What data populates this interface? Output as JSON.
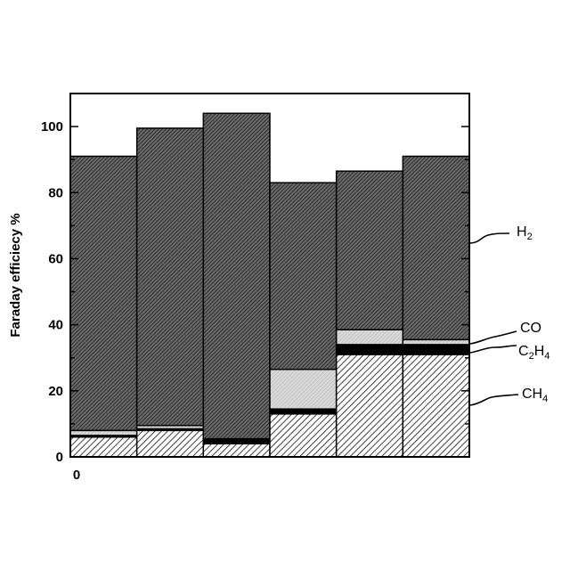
{
  "chart_data": {
    "type": "bar",
    "stacked": true,
    "xlabel": "",
    "ylabel": "Faraday efficiecy %",
    "ylim": [
      0,
      110
    ],
    "yticks": [
      0,
      20,
      40,
      60,
      80,
      100
    ],
    "x_tick_labels": [
      "0"
    ],
    "categories": [
      "",
      "",
      "",
      "",
      "",
      ""
    ],
    "series": [
      {
        "name": "CH4",
        "label_main": "CH",
        "label_sub": "4",
        "pattern": "ch4",
        "values": [
          6,
          8,
          4,
          13,
          31,
          31
        ]
      },
      {
        "name": "C2H4",
        "label_main": "C",
        "label_sub1": "2",
        "label_mid": "H",
        "label_sub2": "4",
        "pattern": "c2h4",
        "values": [
          0.5,
          0.5,
          1.5,
          1.5,
          3,
          3
        ]
      },
      {
        "name": "CO",
        "label_main": "CO",
        "pattern": "co",
        "values": [
          1.5,
          1,
          0,
          12,
          4.5,
          1.5
        ]
      },
      {
        "name": "H2",
        "label_main": "H",
        "label_sub": "2",
        "pattern": "h2",
        "values": [
          83,
          90,
          98.5,
          56.5,
          48,
          55.5
        ]
      }
    ],
    "grid": false,
    "legend": "right, inline callouts"
  },
  "colors": {
    "axis": "#000000",
    "h2_fill": "#4a4a4a",
    "co_fill": "#c8c8c8",
    "c2h4_fill": "#000000",
    "ch4_fill": "#ffffff"
  }
}
